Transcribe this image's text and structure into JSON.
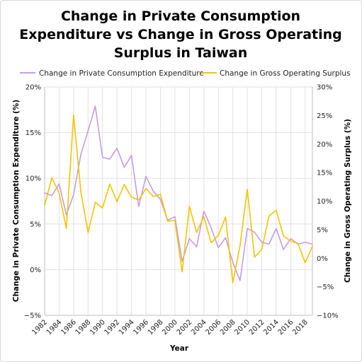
{
  "chart_data": {
    "type": "line",
    "title_lines": [
      "Change in Private Consumption",
      "Expenditure vs Change in Gross Operating",
      "Surplus in Taiwan"
    ],
    "xlabel": "Year",
    "ylabel_left": "Change in Private Consumption Expenditure (%)",
    "ylabel_right": "Change in Gross Operating Surplus (%)",
    "x": [
      1982,
      1983,
      1984,
      1985,
      1986,
      1987,
      1988,
      1989,
      1990,
      1991,
      1992,
      1993,
      1994,
      1995,
      1996,
      1997,
      1998,
      1999,
      2000,
      2001,
      2002,
      2003,
      2004,
      2005,
      2006,
      2007,
      2008,
      2009,
      2010,
      2011,
      2012,
      2013,
      2014,
      2015,
      2016,
      2017,
      2018,
      2019
    ],
    "x_tick_labels": [
      "1982",
      "1984",
      "1986",
      "1988",
      "1990",
      "1992",
      "1994",
      "1996",
      "1998",
      "2000",
      "2002",
      "2004",
      "2006",
      "2008",
      "2010",
      "2012",
      "2014",
      "2016",
      "2018"
    ],
    "x_range": [
      1982,
      2019
    ],
    "y_left_range": [
      -5,
      20
    ],
    "y_left_ticks": [
      -5,
      0,
      5,
      10,
      15,
      20
    ],
    "y_left_tick_labels": [
      "−5%",
      "0%",
      "5%",
      "10%",
      "15%",
      "20%"
    ],
    "y_right_range": [
      -10,
      30
    ],
    "y_right_ticks": [
      -10,
      -5,
      0,
      5,
      10,
      15,
      20,
      25,
      30
    ],
    "y_right_tick_labels": [
      "−10%",
      "−5%",
      "0%",
      "5%",
      "10%",
      "15%",
      "20%",
      "25%",
      "30%"
    ],
    "grid": true,
    "legend_position": "top",
    "series": [
      {
        "name": "Change in Private Consumption Expenditure",
        "axis": "left",
        "color": "#c39bf0",
        "values": [
          8.4,
          8.1,
          9.4,
          6.0,
          8.2,
          12.6,
          15.2,
          17.9,
          12.3,
          12.1,
          13.3,
          11.2,
          12.5,
          6.9,
          10.2,
          8.6,
          7.7,
          5.4,
          5.8,
          0.9,
          3.4,
          2.5,
          6.4,
          4.6,
          2.4,
          3.5,
          0.8,
          -1.2,
          4.5,
          4.1,
          3.0,
          2.8,
          4.5,
          2.2,
          3.4,
          2.8,
          3.0,
          2.8
        ]
      },
      {
        "name": "Change in Gross Operating Surplus",
        "axis": "right",
        "color": "#f5c400",
        "values": [
          9.3,
          14.1,
          11.4,
          5.2,
          25.1,
          11.7,
          4.5,
          9.8,
          8.8,
          13.0,
          9.9,
          12.9,
          10.7,
          10.2,
          12.2,
          10.8,
          11.2,
          6.5,
          6.6,
          -2.4,
          9.1,
          4.5,
          7.3,
          2.7,
          4.0,
          7.2,
          -4.3,
          2.2,
          12.1,
          0.2,
          1.5,
          7.4,
          8.4,
          3.9,
          3.0,
          2.6,
          -0.8,
          2.1
        ]
      }
    ]
  }
}
